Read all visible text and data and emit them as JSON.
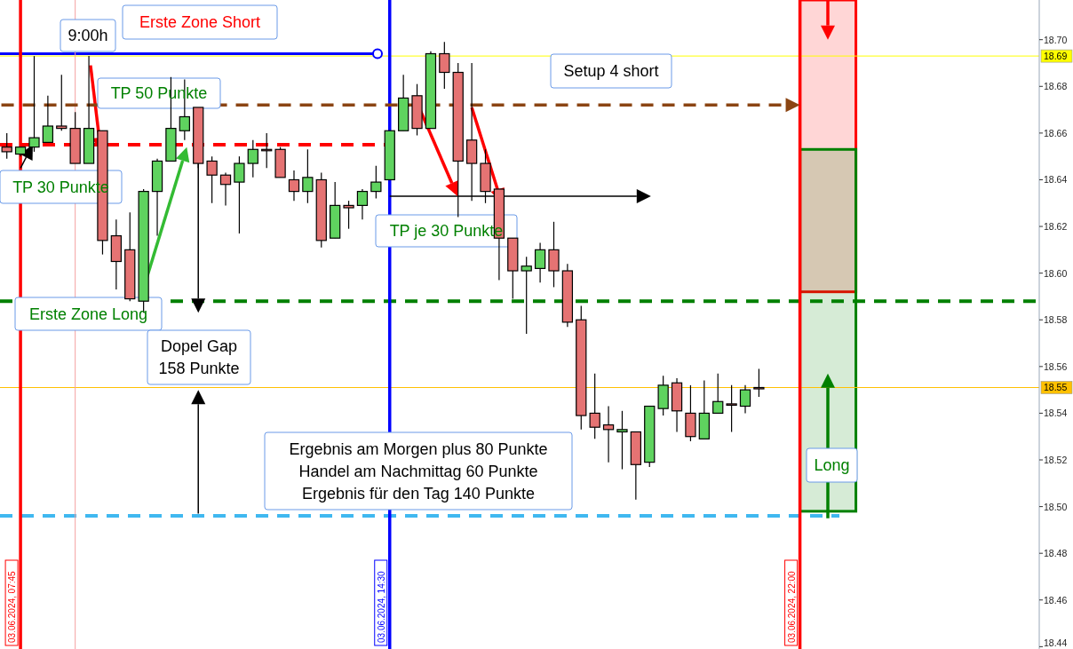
{
  "chart_data": {
    "type": "candlestick",
    "categories": [
      null,
      null,
      null,
      null,
      null,
      null,
      null,
      null,
      null,
      null,
      null,
      null,
      null,
      null,
      null,
      null,
      null,
      null,
      null,
      null,
      null,
      null,
      null,
      null,
      null,
      null,
      null,
      null,
      null,
      null,
      null,
      null,
      null,
      null,
      null,
      null,
      null,
      null,
      null,
      null,
      null,
      null,
      null,
      null,
      null,
      null,
      null,
      null,
      null,
      null,
      null,
      null,
      null,
      null,
      null,
      null,
      null,
      null,
      null,
      null,
      null,
      null,
      null,
      null,
      null,
      null,
      null,
      null,
      null,
      null,
      null,
      null,
      null,
      null,
      null,
      null
    ],
    "ohlc": [
      [
        18.654,
        18.66,
        18.649,
        18.652
      ],
      [
        18.651,
        18.654,
        18.65,
        18.654
      ],
      [
        18.654,
        18.693,
        18.652,
        18.658
      ],
      [
        18.656,
        18.676,
        18.656,
        18.663
      ],
      [
        18.663,
        18.685,
        18.661,
        18.662
      ],
      [
        18.662,
        18.669,
        18.647,
        18.647
      ],
      [
        18.647,
        18.693,
        18.647,
        18.662
      ],
      [
        18.661,
        18.661,
        18.608,
        18.614
      ],
      [
        18.616,
        18.623,
        18.593,
        18.605
      ],
      [
        18.61,
        18.626,
        18.588,
        18.589
      ],
      [
        18.588,
        18.636,
        18.583,
        18.635
      ],
      [
        18.635,
        18.649,
        18.616,
        18.648
      ],
      [
        18.648,
        18.684,
        18.648,
        18.662
      ],
      [
        18.661,
        18.683,
        18.657,
        18.667
      ],
      [
        18.671,
        18.671,
        18.645,
        18.647
      ],
      [
        18.648,
        18.65,
        18.63,
        18.642
      ],
      [
        18.642,
        18.643,
        18.629,
        18.638
      ],
      [
        18.639,
        18.65,
        18.617,
        18.647
      ],
      [
        18.647,
        18.657,
        18.641,
        18.653
      ],
      [
        18.653,
        18.66,
        18.645,
        18.653
      ],
      [
        18.653,
        18.654,
        18.641,
        18.641
      ],
      [
        18.64,
        18.644,
        18.631,
        18.635
      ],
      [
        18.635,
        18.653,
        18.63,
        18.641
      ],
      [
        18.64,
        18.643,
        18.611,
        18.614
      ],
      [
        18.615,
        18.639,
        18.615,
        18.629
      ],
      [
        18.629,
        18.631,
        18.619,
        18.628
      ],
      [
        18.629,
        18.636,
        18.623,
        18.635
      ],
      [
        18.635,
        18.646,
        18.632,
        18.639
      ],
      [
        18.64,
        18.661,
        18.64,
        18.661
      ],
      [
        18.661,
        18.685,
        18.661,
        18.675
      ],
      [
        18.676,
        18.681,
        18.659,
        18.662
      ],
      [
        18.662,
        18.695,
        18.662,
        18.694
      ],
      [
        18.694,
        18.699,
        18.679,
        18.686
      ],
      [
        18.686,
        18.69,
        18.624,
        18.648
      ],
      [
        18.657,
        18.69,
        18.631,
        18.647
      ],
      [
        18.647,
        18.653,
        18.63,
        18.635
      ],
      [
        18.636,
        18.636,
        18.597,
        18.615
      ],
      [
        18.615,
        18.615,
        18.589,
        18.601
      ],
      [
        18.601,
        18.607,
        18.574,
        18.603
      ],
      [
        18.602,
        18.613,
        18.596,
        18.61
      ],
      [
        18.61,
        18.622,
        18.594,
        18.601
      ],
      [
        18.601,
        18.604,
        18.577,
        18.579
      ],
      [
        18.58,
        18.586,
        18.533,
        18.539
      ],
      [
        18.54,
        18.557,
        18.529,
        18.534
      ],
      [
        18.535,
        18.543,
        18.519,
        18.533
      ],
      [
        18.532,
        18.541,
        18.516,
        18.533
      ],
      [
        18.532,
        18.532,
        18.503,
        18.518
      ],
      [
        18.519,
        18.543,
        18.517,
        18.543
      ],
      [
        18.542,
        18.556,
        18.539,
        18.552
      ],
      [
        18.553,
        18.555,
        18.532,
        18.541
      ],
      [
        18.54,
        18.552,
        18.528,
        18.53
      ],
      [
        18.529,
        18.554,
        18.529,
        18.54
      ],
      [
        18.54,
        18.557,
        18.54,
        18.545
      ],
      [
        18.544,
        18.552,
        18.532,
        18.544
      ],
      [
        18.543,
        18.552,
        18.54,
        18.55
      ],
      [
        18.551,
        18.559,
        18.547,
        18.551
      ],
      null,
      null,
      null,
      null,
      null,
      null,
      null,
      null,
      null,
      null,
      null,
      null,
      null,
      null,
      null,
      null,
      null,
      null,
      null,
      null
    ],
    "colors": [
      "#e57373",
      "#5fd35f",
      "#5fd35f",
      "#5fd35f",
      "#e57373",
      "#e57373",
      "#5fd35f",
      "#e57373",
      "#e57373",
      "#e57373",
      "#5fd35f",
      "#5fd35f",
      "#5fd35f",
      "#5fd35f",
      "#e57373",
      "#e57373",
      "#e57373",
      "#5fd35f",
      "#5fd35f",
      "#e57373",
      "#e57373",
      "#e57373",
      "#5fd35f",
      "#e57373",
      "#5fd35f",
      "#e57373",
      "#5fd35f",
      "#5fd35f",
      "#5fd35f",
      "#5fd35f",
      "#e57373",
      "#5fd35f",
      "#e57373",
      "#e57373",
      "#e57373",
      "#e57373",
      "#e57373",
      "#e57373",
      "#5fd35f",
      "#5fd35f",
      "#e57373",
      "#e57373",
      "#e57373",
      "#e57373",
      "#e57373",
      "#5fd35f",
      "#e57373",
      "#5fd35f",
      "#5fd35f",
      "#e57373",
      "#e57373",
      "#5fd35f",
      "#5fd35f",
      "#e57373",
      "#5fd35f",
      "#e57373",
      null,
      null,
      null,
      null,
      null,
      null,
      null,
      null,
      null,
      null,
      null,
      null,
      null,
      null,
      null,
      null,
      null,
      null,
      null,
      null
    ],
    "ylim": [
      18.439,
      18.717
    ],
    "yticks": [
      18.44,
      18.46,
      18.48,
      {
        "value": 18.5,
        "label": "18.50"
      },
      18.52,
      18.54,
      18.56,
      18.58,
      {
        "value": 18.6,
        "label": "18.60"
      },
      18.62,
      18.64,
      18.66,
      18.68,
      {
        "value": 18.7,
        "label": "18.70"
      }
    ],
    "tick_labels": "y",
    "ref_lines": [
      {
        "axis": "y",
        "value": 18.693,
        "label": "18.69",
        "color": "#ffff00"
      },
      {
        "axis": "y",
        "value": 18.551,
        "label": "18.55",
        "color": "#ffc000"
      },
      {
        "axis": "y",
        "value": 18.694,
        "color": "#0000ff",
        "line_style": "solid"
      },
      {
        "axis": "y",
        "value": 18.655,
        "color": "#ff0000",
        "line_style": "dashed"
      },
      {
        "axis": "y",
        "value": 18.588,
        "color": "#008000",
        "line_style": "dashed"
      },
      {
        "axis": "y",
        "value": 18.496,
        "color": "#40b8f0",
        "line_style": "dashed"
      }
    ],
    "bands": [
      {
        "axis": "y",
        "from": 18.592,
        "to": 18.717,
        "color": "#ff0000"
      },
      {
        "axis": "y",
        "from": 18.498,
        "to": 18.653,
        "color": "#008000"
      }
    ],
    "annotations": [
      "9:00h",
      "Erste Zone Short",
      {
        "text": "TP 50 Punkte",
        "y": 18.654
      },
      "TP 30 Punkte",
      "Erste Zone Long",
      "Dopel Gap\n158 Punkte",
      "Setup 4 short",
      "TP je 30 Punkte",
      "Ergebnis am Morgen plus 80 Punkte\nHandel am Nachmittag 60 Punkte\nErgebnis für den Tag 140 Punkte",
      "Long",
      "03.06.2024, 07:45",
      "03.06.2024, 14:30",
      "03.06.2024, 22:00"
    ]
  }
}
